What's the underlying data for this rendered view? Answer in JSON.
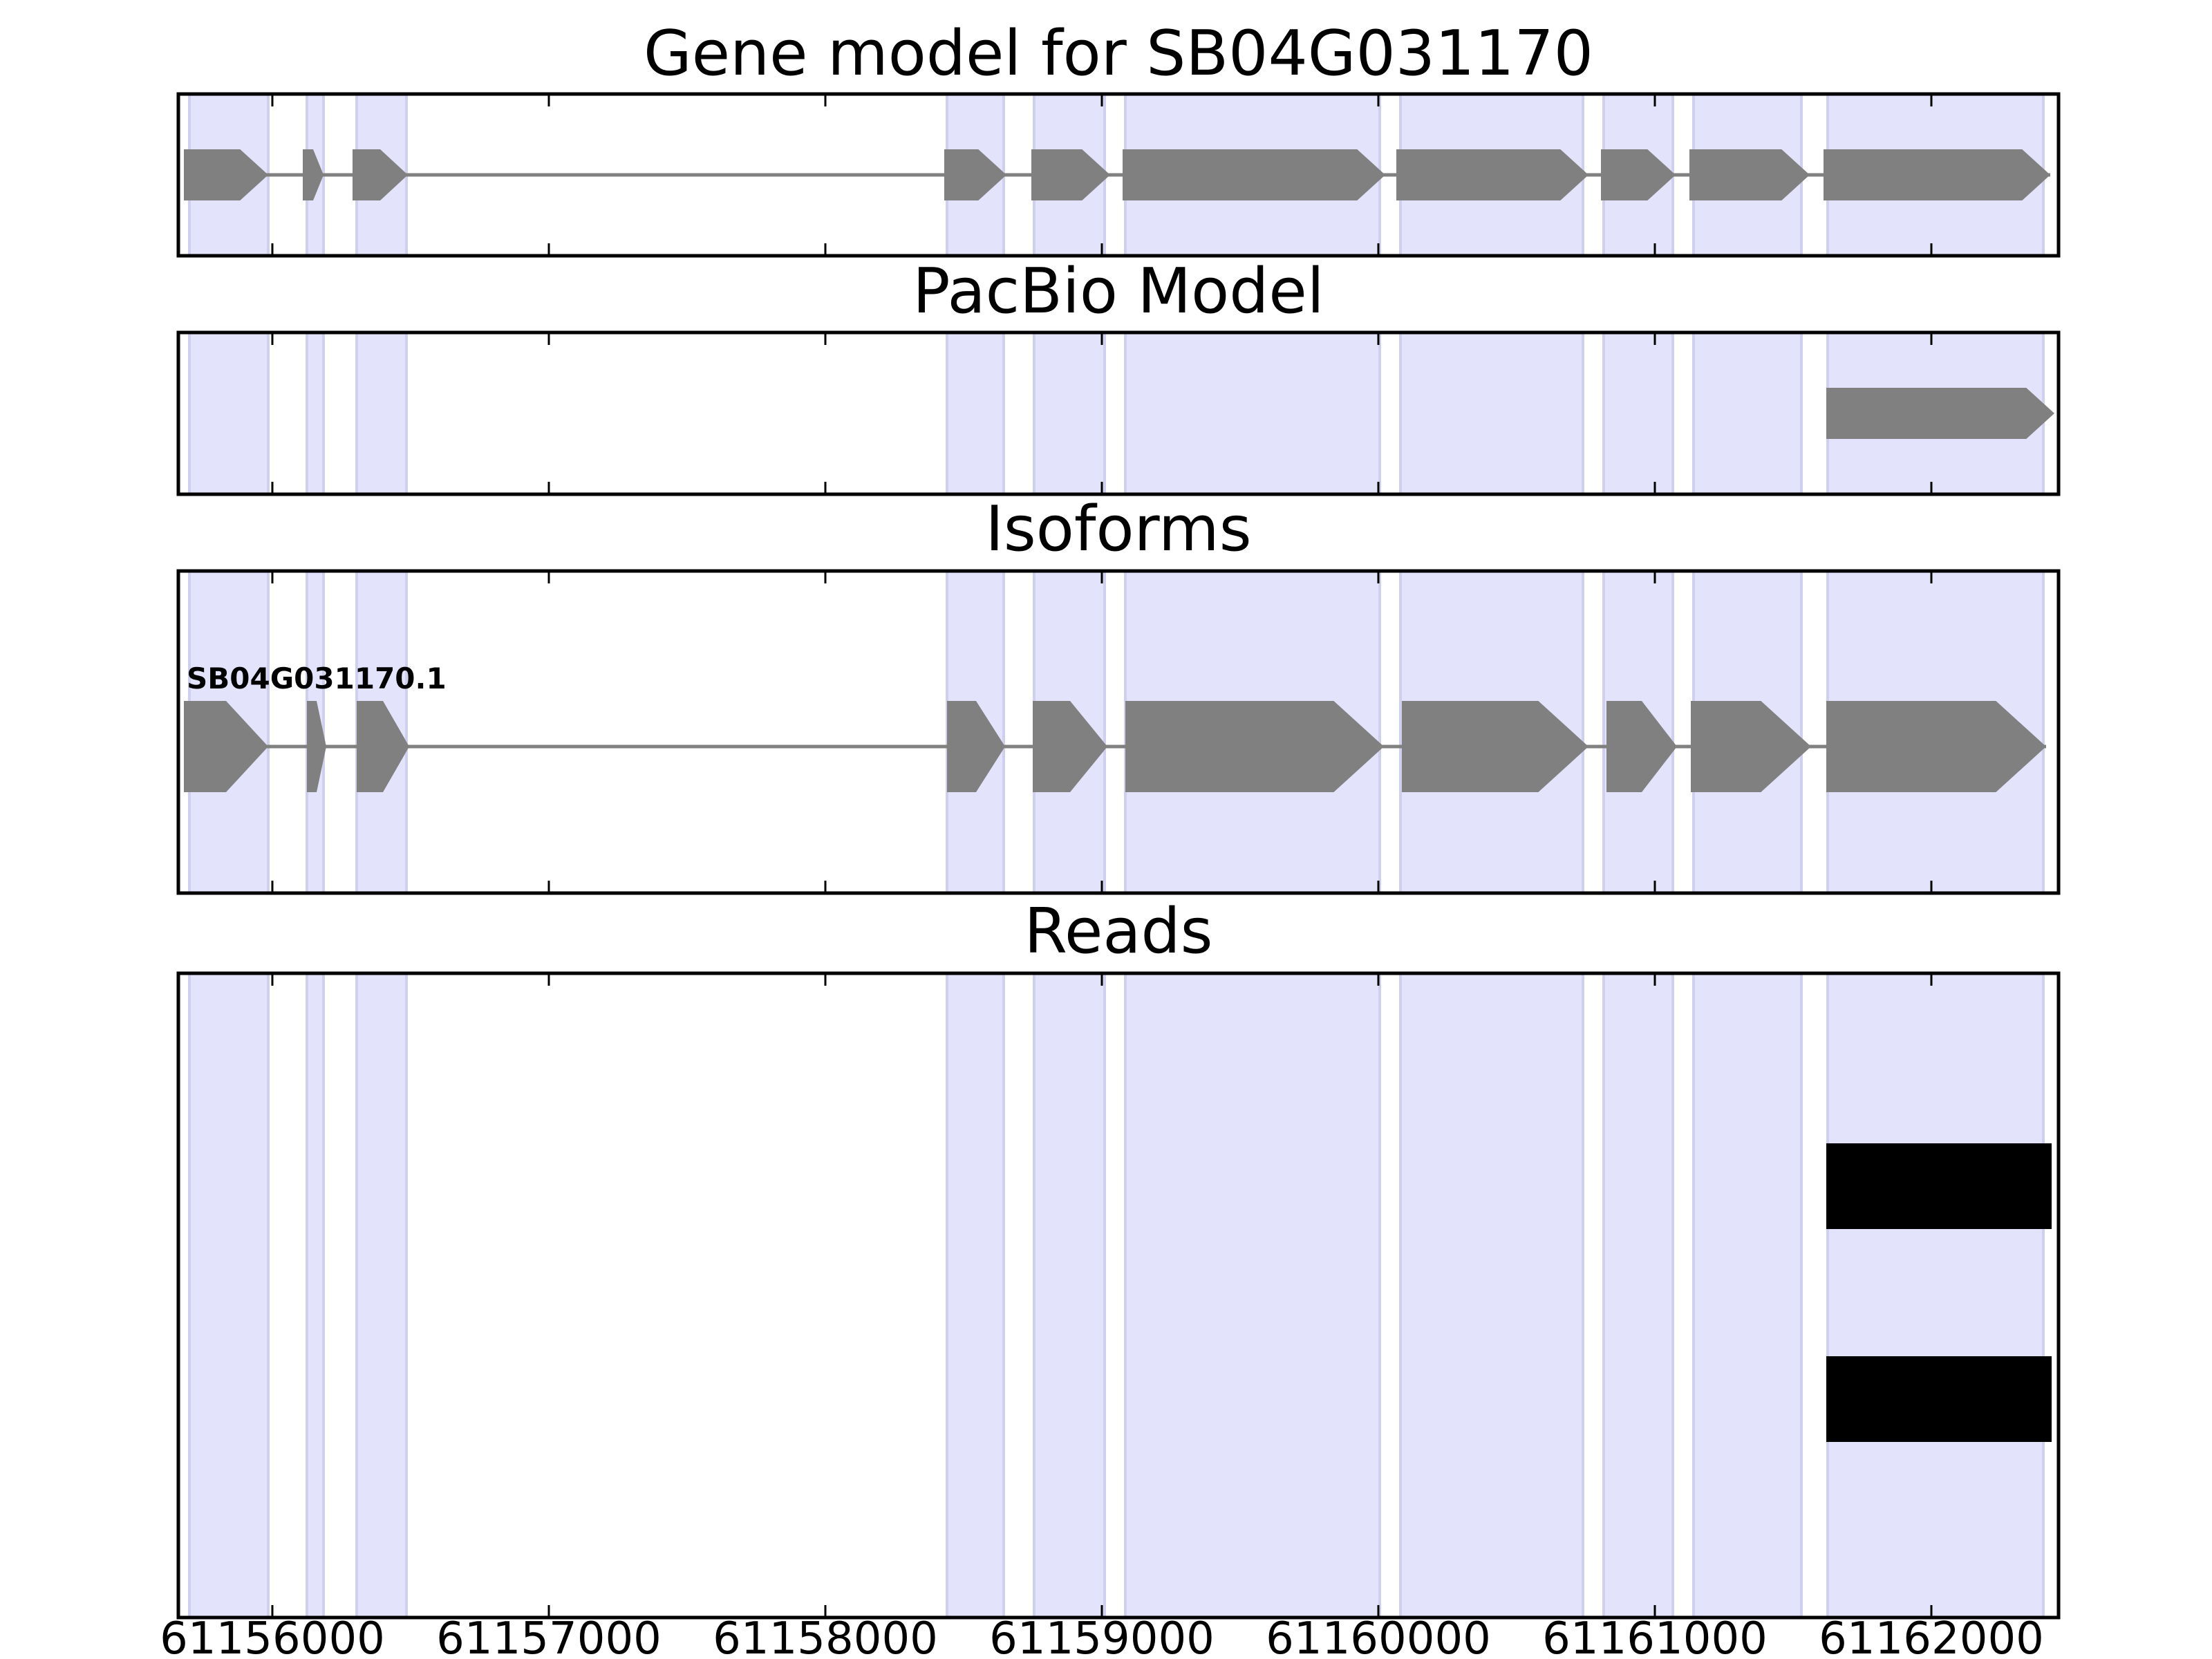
{
  "chart_data": {
    "type": "gene-track",
    "xlim": [
      61155660,
      61162460
    ],
    "x_ticks": [
      61156000,
      61157000,
      61158000,
      61159000,
      61160000,
      61161000,
      61162000
    ],
    "x_tick_labels": [
      "61156000",
      "61157000",
      "61158000",
      "61159000",
      "61160000",
      "61161000",
      "61162000"
    ],
    "highlight_color": "#e3e3fc",
    "highlight_edge_color": "#cfd0ee",
    "feature_color": "#808080",
    "read_color": "#000000",
    "exon_regions": [
      [
        61155700,
        61155985
      ],
      [
        61156125,
        61156185
      ],
      [
        61156305,
        61156485
      ],
      [
        61158440,
        61158645
      ],
      [
        61158755,
        61159010
      ],
      [
        61159085,
        61160005
      ],
      [
        61160080,
        61160740
      ],
      [
        61160815,
        61161065
      ],
      [
        61161140,
        61161530
      ],
      [
        61161625,
        61162405
      ]
    ],
    "panels": [
      {
        "title": "Gene model for SB04G031170",
        "rows": [
          {
            "label": "",
            "exons": [
              [
                61155680,
                61155985
              ],
              [
                61156110,
                61156185
              ],
              [
                61156290,
                61156490
              ],
              [
                61158430,
                61158655
              ],
              [
                61158745,
                61159030
              ],
              [
                61159075,
                61160025
              ],
              [
                61160065,
                61160760
              ],
              [
                61160805,
                61161075
              ],
              [
                61161125,
                61161560
              ],
              [
                61161610,
                61162430
              ]
            ]
          }
        ]
      },
      {
        "title": "PacBio Model",
        "rows": [
          {
            "label": "",
            "exons": [
              [
                61161620,
                61162445
              ]
            ]
          }
        ]
      },
      {
        "title": "Isoforms",
        "rows": [
          {
            "label": "SB04G031170.1",
            "exons": [
              [
                61155680,
                61155985
              ],
              [
                61156125,
                61156195
              ],
              [
                61156305,
                61156495
              ],
              [
                61158440,
                61158650
              ],
              [
                61158750,
                61159020
              ],
              [
                61159085,
                61160020
              ],
              [
                61160085,
                61160760
              ],
              [
                61160825,
                61161080
              ],
              [
                61161130,
                61161565
              ],
              [
                61161620,
                61162415
              ]
            ]
          }
        ]
      },
      {
        "title": "Reads",
        "reads": [
          [
            61161620,
            61162435
          ],
          [
            61161620,
            61162435
          ]
        ]
      }
    ]
  }
}
